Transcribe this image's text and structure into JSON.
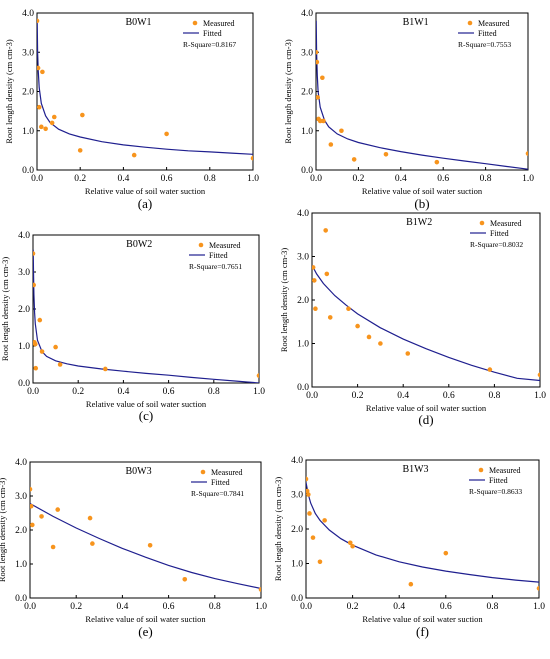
{
  "figure": {
    "colors": {
      "measured": "#f7941d",
      "fitted": "#1f1f8f",
      "axis": "#000000"
    },
    "legend": {
      "measured_label": "Measured",
      "fitted_label": "Fitted"
    }
  },
  "chart_data": [
    {
      "type": "scatter",
      "title": "B0W1",
      "caption": "(a)",
      "xlabel": "Relative value of soil water suction",
      "ylabel": "Root length density (cm cm-3)",
      "xlim": [
        0,
        1.0
      ],
      "ylim": [
        0,
        4.0
      ],
      "xticks": [
        "0.0",
        "0.2",
        "0.4",
        "0.6",
        "0.8",
        "1.0"
      ],
      "yticks": [
        "0.0",
        "1.0",
        "2.0",
        "3.0",
        "4.0"
      ],
      "r_square": "R-Square=0.8167",
      "legend_position": "top-right",
      "series": [
        {
          "name": "Measured",
          "points": [
            [
              0.0,
              3.8
            ],
            [
              0.005,
              2.6
            ],
            [
              0.01,
              1.6
            ],
            [
              0.02,
              1.1
            ],
            [
              0.025,
              2.5
            ],
            [
              0.04,
              1.05
            ],
            [
              0.07,
              1.2
            ],
            [
              0.08,
              1.35
            ],
            [
              0.2,
              0.5
            ],
            [
              0.21,
              1.4
            ],
            [
              0.45,
              0.38
            ],
            [
              0.6,
              0.92
            ],
            [
              1.0,
              0.3
            ]
          ]
        },
        {
          "name": "Fitted",
          "curve": [
            [
              0.001,
              3.8
            ],
            [
              0.003,
              3.0
            ],
            [
              0.006,
              2.5
            ],
            [
              0.01,
              2.1
            ],
            [
              0.02,
              1.7
            ],
            [
              0.04,
              1.38
            ],
            [
              0.06,
              1.21
            ],
            [
              0.1,
              1.04
            ],
            [
              0.15,
              0.92
            ],
            [
              0.2,
              0.84
            ],
            [
              0.3,
              0.72
            ],
            [
              0.4,
              0.64
            ],
            [
              0.5,
              0.58
            ],
            [
              0.6,
              0.53
            ],
            [
              0.7,
              0.49
            ],
            [
              0.8,
              0.46
            ],
            [
              0.9,
              0.43
            ],
            [
              1.0,
              0.4
            ]
          ]
        }
      ]
    },
    {
      "type": "scatter",
      "title": "B1W1",
      "caption": "(b)",
      "xlabel": "Relative value of soil water suction",
      "ylabel": "Root length density (cm cm-3)",
      "xlim": [
        0,
        1.0
      ],
      "ylim": [
        0,
        4.0
      ],
      "xticks": [
        "0.0",
        "0.2",
        "0.4",
        "0.6",
        "0.8",
        "1.0"
      ],
      "yticks": [
        "0.0",
        "1.0",
        "2.0",
        "3.0",
        "4.0"
      ],
      "r_square": "R-Square=0.7553",
      "legend_position": "top-right",
      "series": [
        {
          "name": "Measured",
          "points": [
            [
              0.0,
              3.0
            ],
            [
              0.004,
              2.75
            ],
            [
              0.008,
              1.85
            ],
            [
              0.012,
              1.3
            ],
            [
              0.02,
              1.25
            ],
            [
              0.03,
              2.35
            ],
            [
              0.035,
              1.25
            ],
            [
              0.07,
              0.65
            ],
            [
              0.12,
              1.0
            ],
            [
              0.18,
              0.27
            ],
            [
              0.33,
              0.4
            ],
            [
              0.57,
              0.2
            ],
            [
              1.0,
              0.42
            ]
          ]
        },
        {
          "name": "Fitted",
          "curve": [
            [
              0.001,
              3.8
            ],
            [
              0.003,
              3.0
            ],
            [
              0.006,
              2.4
            ],
            [
              0.01,
              2.0
            ],
            [
              0.02,
              1.6
            ],
            [
              0.04,
              1.27
            ],
            [
              0.06,
              1.1
            ],
            [
              0.1,
              0.92
            ],
            [
              0.15,
              0.79
            ],
            [
              0.2,
              0.7
            ],
            [
              0.3,
              0.57
            ],
            [
              0.4,
              0.47
            ],
            [
              0.5,
              0.38
            ],
            [
              0.6,
              0.3
            ],
            [
              0.7,
              0.23
            ],
            [
              0.8,
              0.16
            ],
            [
              0.9,
              0.09
            ],
            [
              1.0,
              0.02
            ]
          ]
        }
      ]
    },
    {
      "type": "scatter",
      "title": "B0W2",
      "caption": "(c)",
      "xlabel": "Relative value of soil water suction",
      "ylabel": "Root length density (cm cm-3)",
      "xlim": [
        0,
        1.0
      ],
      "ylim": [
        0,
        4.0
      ],
      "xticks": [
        "0.0",
        "0.2",
        "0.4",
        "0.6",
        "0.8",
        "1.0"
      ],
      "yticks": [
        "0.0",
        "1.0",
        "2.0",
        "3.0",
        "4.0"
      ],
      "r_square": "R-Square=0.7651",
      "legend_position": "top-right",
      "series": [
        {
          "name": "Measured",
          "points": [
            [
              0.0,
              3.5
            ],
            [
              0.003,
              2.65
            ],
            [
              0.006,
              1.1
            ],
            [
              0.01,
              1.05
            ],
            [
              0.012,
              0.4
            ],
            [
              0.03,
              1.7
            ],
            [
              0.04,
              0.85
            ],
            [
              0.1,
              0.97
            ],
            [
              0.12,
              0.5
            ],
            [
              0.32,
              0.38
            ],
            [
              1.0,
              0.2
            ]
          ]
        },
        {
          "name": "Fitted",
          "curve": [
            [
              0.001,
              3.6
            ],
            [
              0.002,
              3.0
            ],
            [
              0.004,
              2.4
            ],
            [
              0.007,
              1.9
            ],
            [
              0.01,
              1.6
            ],
            [
              0.02,
              1.15
            ],
            [
              0.04,
              0.85
            ],
            [
              0.06,
              0.72
            ],
            [
              0.1,
              0.6
            ],
            [
              0.15,
              0.52
            ],
            [
              0.2,
              0.46
            ],
            [
              0.3,
              0.38
            ],
            [
              0.4,
              0.32
            ],
            [
              0.5,
              0.26
            ],
            [
              0.6,
              0.21
            ],
            [
              0.7,
              0.15
            ],
            [
              0.8,
              0.1
            ],
            [
              0.9,
              0.05
            ],
            [
              1.0,
              0.0
            ]
          ]
        }
      ]
    },
    {
      "type": "scatter",
      "title": "B1W2",
      "caption": "(d)",
      "xlabel": "Relative value of soil water suction",
      "ylabel": "Root length density (cm cm-3)",
      "xlim": [
        0,
        1.0
      ],
      "ylim": [
        0,
        4.0
      ],
      "xticks": [
        "0.0",
        "0.2",
        "0.4",
        "0.6",
        "0.8",
        "1.0"
      ],
      "yticks": [
        "0.0",
        "1.0",
        "2.0",
        "3.0",
        "4.0"
      ],
      "r_square": "R-Square=0.8032",
      "legend_position": "top-right",
      "series": [
        {
          "name": "Measured",
          "points": [
            [
              0.005,
              2.75
            ],
            [
              0.01,
              2.45
            ],
            [
              0.015,
              1.8
            ],
            [
              0.06,
              3.6
            ],
            [
              0.065,
              2.6
            ],
            [
              0.08,
              1.6
            ],
            [
              0.16,
              1.8
            ],
            [
              0.2,
              1.4
            ],
            [
              0.25,
              1.15
            ],
            [
              0.3,
              1.0
            ],
            [
              0.42,
              0.77
            ],
            [
              0.78,
              0.4
            ],
            [
              1.0,
              0.28
            ]
          ]
        },
        {
          "name": "Fitted",
          "curve": [
            [
              0.0,
              2.8
            ],
            [
              0.02,
              2.6
            ],
            [
              0.05,
              2.38
            ],
            [
              0.1,
              2.1
            ],
            [
              0.15,
              1.88
            ],
            [
              0.2,
              1.68
            ],
            [
              0.3,
              1.36
            ],
            [
              0.4,
              1.1
            ],
            [
              0.5,
              0.88
            ],
            [
              0.6,
              0.68
            ],
            [
              0.7,
              0.5
            ],
            [
              0.8,
              0.34
            ],
            [
              0.9,
              0.2
            ],
            [
              1.0,
              0.15
            ]
          ]
        }
      ]
    },
    {
      "type": "scatter",
      "title": "B0W3",
      "caption": "(e)",
      "xlabel": "Relative value of soil water suction",
      "ylabel": "Root length density (cm cm-3)",
      "xlim": [
        0,
        1.0
      ],
      "ylim": [
        0,
        4.0
      ],
      "xticks": [
        "0.0",
        "0.2",
        "0.4",
        "0.6",
        "0.8",
        "1.0"
      ],
      "yticks": [
        "0.0",
        "1.0",
        "2.0",
        "3.0",
        "4.0"
      ],
      "r_square": "R-Square=0.7841",
      "legend_position": "top-right",
      "series": [
        {
          "name": "Measured",
          "points": [
            [
              0.0,
              3.2
            ],
            [
              0.005,
              2.7
            ],
            [
              0.01,
              2.15
            ],
            [
              0.05,
              2.4
            ],
            [
              0.1,
              1.5
            ],
            [
              0.12,
              2.6
            ],
            [
              0.26,
              2.35
            ],
            [
              0.27,
              1.6
            ],
            [
              0.52,
              1.55
            ],
            [
              0.67,
              0.55
            ],
            [
              1.0,
              0.25
            ]
          ]
        },
        {
          "name": "Fitted",
          "curve": [
            [
              0.0,
              2.78
            ],
            [
              0.1,
              2.4
            ],
            [
              0.2,
              2.06
            ],
            [
              0.3,
              1.75
            ],
            [
              0.4,
              1.46
            ],
            [
              0.5,
              1.2
            ],
            [
              0.6,
              0.96
            ],
            [
              0.7,
              0.75
            ],
            [
              0.8,
              0.57
            ],
            [
              0.9,
              0.42
            ],
            [
              1.0,
              0.28
            ]
          ]
        }
      ]
    },
    {
      "type": "scatter",
      "title": "B1W3",
      "caption": "(f)",
      "xlabel": "Relative value of soil water suction",
      "ylabel": "Root length density (cm cm-3)",
      "xlim": [
        0,
        1.0
      ],
      "ylim": [
        0,
        4.0
      ],
      "xticks": [
        "0.0",
        "0.2",
        "0.4",
        "0.6",
        "0.8",
        "1.0"
      ],
      "yticks": [
        "0.0",
        "1.0",
        "2.0",
        "3.0",
        "4.0"
      ],
      "r_square": "R-Square=0.8633",
      "legend_position": "top-right",
      "series": [
        {
          "name": "Measured",
          "points": [
            [
              0.0,
              3.45
            ],
            [
              0.005,
              3.1
            ],
            [
              0.01,
              3.0
            ],
            [
              0.015,
              2.45
            ],
            [
              0.03,
              1.75
            ],
            [
              0.06,
              1.05
            ],
            [
              0.08,
              2.25
            ],
            [
              0.19,
              1.6
            ],
            [
              0.2,
              1.5
            ],
            [
              0.45,
              0.4
            ],
            [
              0.6,
              1.3
            ],
            [
              1.0,
              0.28
            ]
          ]
        },
        {
          "name": "Fitted",
          "curve": [
            [
              0.0,
              3.35
            ],
            [
              0.01,
              3.0
            ],
            [
              0.02,
              2.75
            ],
            [
              0.04,
              2.45
            ],
            [
              0.06,
              2.25
            ],
            [
              0.1,
              1.97
            ],
            [
              0.15,
              1.72
            ],
            [
              0.2,
              1.53
            ],
            [
              0.3,
              1.25
            ],
            [
              0.4,
              1.05
            ],
            [
              0.5,
              0.9
            ],
            [
              0.6,
              0.78
            ],
            [
              0.7,
              0.68
            ],
            [
              0.8,
              0.59
            ],
            [
              0.9,
              0.52
            ],
            [
              1.0,
              0.46
            ]
          ]
        }
      ]
    }
  ]
}
